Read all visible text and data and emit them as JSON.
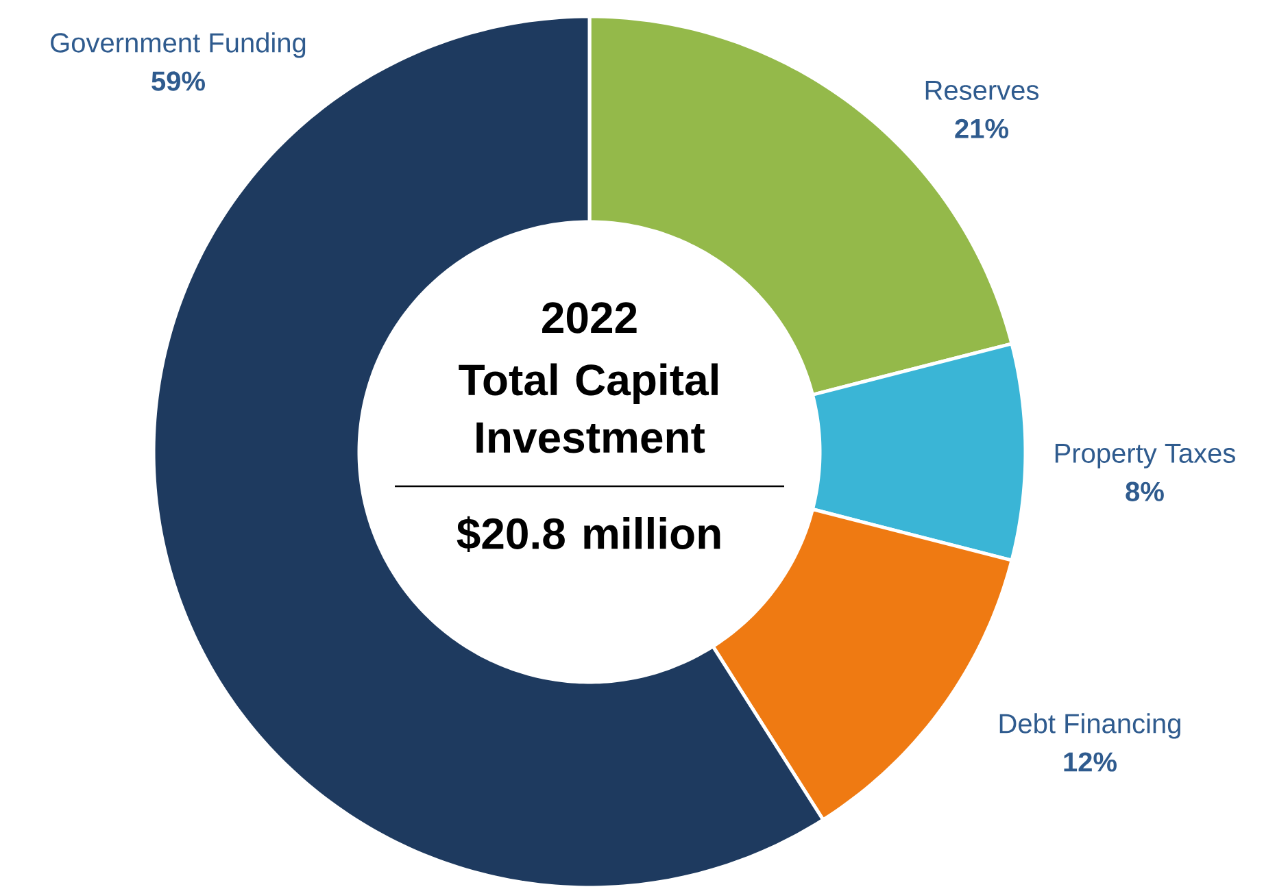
{
  "chart_data": {
    "type": "donut",
    "title": "2022",
    "subtitle": "Total Capital Investment",
    "annotations": [
      "$20.8 million"
    ],
    "categories": [
      "Reserves",
      "Property Taxes",
      "Debt Financing",
      "Government Funding"
    ],
    "values": [
      21,
      8,
      12,
      59
    ],
    "value_labels": [
      "21%",
      "8%",
      "12%",
      "59%"
    ],
    "colors": [
      "#94b94a",
      "#3ab5d6",
      "#ef7a12",
      "#1e3a5f"
    ]
  }
}
